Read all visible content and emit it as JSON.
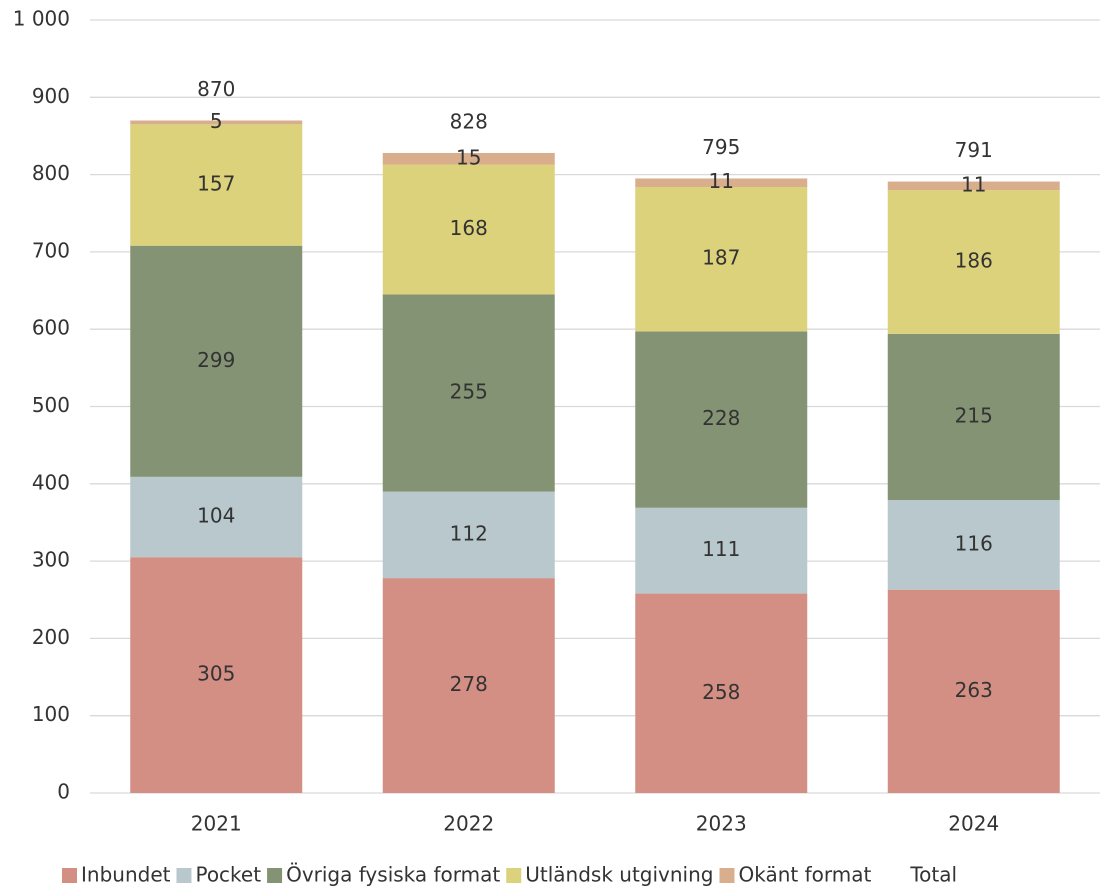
{
  "chart_data": {
    "type": "stacked-bar",
    "categories": [
      "2021",
      "2022",
      "2023",
      "2024"
    ],
    "series": [
      {
        "name": "Inbundet",
        "color": "#d48f85",
        "values": [
          305,
          278,
          258,
          263
        ]
      },
      {
        "name": "Pocket",
        "color": "#b8c8cc",
        "values": [
          104,
          112,
          111,
          116
        ]
      },
      {
        "name": "Övriga fysiska format",
        "color": "#849373",
        "values": [
          299,
          255,
          228,
          215
        ]
      },
      {
        "name": "Utländsk utgivning",
        "color": "#dcd27c",
        "values": [
          157,
          168,
          187,
          186
        ]
      },
      {
        "name": "Okänt format",
        "color": "#d8ae8c",
        "values": [
          5,
          15,
          11,
          11
        ]
      },
      {
        "name": "Total",
        "color": null,
        "values": [
          870,
          828,
          795,
          791
        ]
      }
    ],
    "ylim": [
      0,
      1000
    ],
    "yticks": [
      0,
      100,
      200,
      300,
      400,
      500,
      600,
      700,
      800,
      900,
      {
        "value": 1000,
        "label": "1 000"
      }
    ],
    "grid": true,
    "legend": "bottom"
  }
}
